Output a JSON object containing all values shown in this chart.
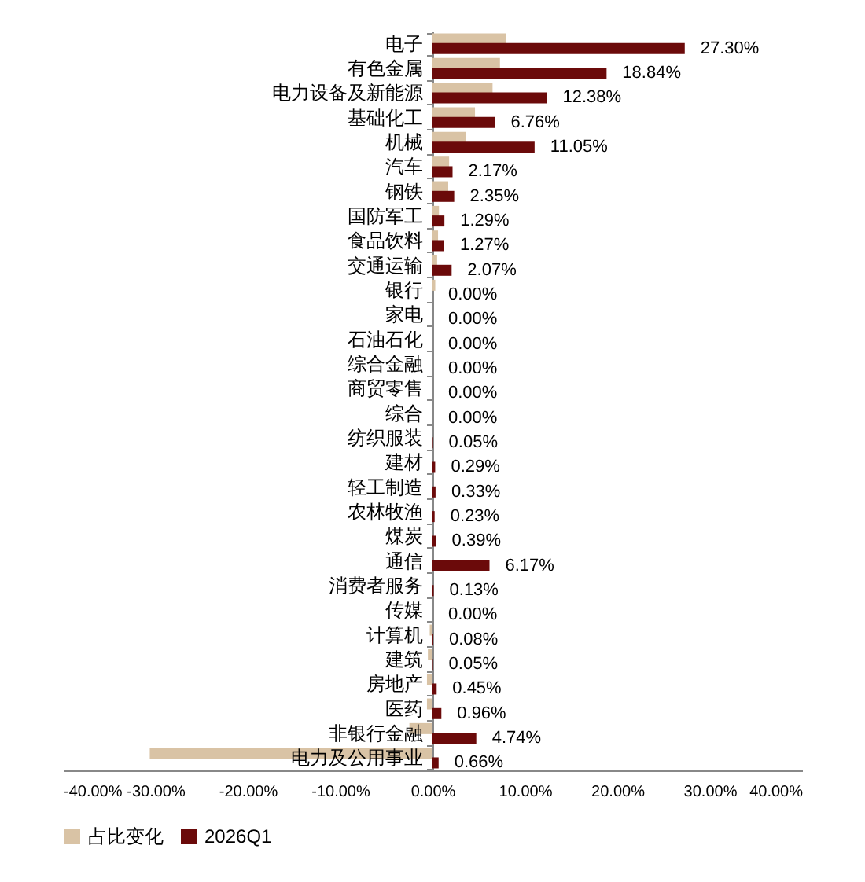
{
  "chart_data": {
    "type": "bar",
    "orientation": "horizontal",
    "categories": [
      "电子",
      "有色金属",
      "电力设备及新能源",
      "基础化工",
      "机械",
      "汽车",
      "钢铁",
      "国防军工",
      "食品饮料",
      "交通运输",
      "银行",
      "家电",
      "石油石化",
      "综合金融",
      "商贸零售",
      "综合",
      "纺织服装",
      "建材",
      "轻工制造",
      "农林牧渔",
      "煤炭",
      "通信",
      "消费者服务",
      "传媒",
      "计算机",
      "建筑",
      "房地产",
      "医药",
      "非银行金融",
      "电力及公用事业"
    ],
    "series": [
      {
        "name": "占比变化",
        "color": "#d9c3a5",
        "values": [
          8.0,
          7.3,
          6.5,
          4.6,
          3.6,
          1.8,
          1.7,
          0.7,
          0.6,
          0.5,
          0.3,
          0.0,
          0.0,
          0.0,
          0.0,
          0.0,
          0.0,
          0.0,
          0.0,
          0.0,
          0.0,
          0.0,
          0.0,
          0.0,
          -0.3,
          -0.5,
          -0.6,
          -0.6,
          -2.5,
          -30.6
        ]
      },
      {
        "name": "2026Q1",
        "color": "#6b0a0a",
        "values": [
          27.3,
          18.84,
          12.38,
          6.76,
          11.05,
          2.17,
          2.35,
          1.29,
          1.27,
          2.07,
          0.0,
          0.0,
          0.0,
          0.0,
          0.0,
          0.0,
          0.05,
          0.29,
          0.33,
          0.23,
          0.39,
          6.17,
          0.13,
          0.0,
          0.08,
          0.05,
          0.45,
          0.96,
          4.74,
          0.66
        ],
        "value_labels": [
          "27.30%",
          "18.84%",
          "12.38%",
          "6.76%",
          "11.05%",
          "2.17%",
          "2.35%",
          "1.29%",
          "1.27%",
          "2.07%",
          "0.00%",
          "0.00%",
          "0.00%",
          "0.00%",
          "0.00%",
          "0.00%",
          "0.05%",
          "0.29%",
          "0.33%",
          "0.23%",
          "0.39%",
          "6.17%",
          "0.13%",
          "0.00%",
          "0.08%",
          "0.05%",
          "0.45%",
          "0.96%",
          "4.74%",
          "0.66%"
        ]
      }
    ],
    "xlim": [
      -40,
      40
    ],
    "xticks": [
      {
        "value": -40,
        "label": "-40.00%"
      },
      {
        "value": -30,
        "label": "-30.00%"
      },
      {
        "value": -20,
        "label": "-20.00%"
      },
      {
        "value": -10,
        "label": "-10.00%"
      },
      {
        "value": 0,
        "label": "0.00%"
      },
      {
        "value": 10,
        "label": "10.00%"
      },
      {
        "value": 20,
        "label": "20.00%"
      },
      {
        "value": 30,
        "label": "30.00%"
      },
      {
        "value": 40,
        "label": "40.00%"
      }
    ],
    "grid": false,
    "legend": "bottom"
  }
}
